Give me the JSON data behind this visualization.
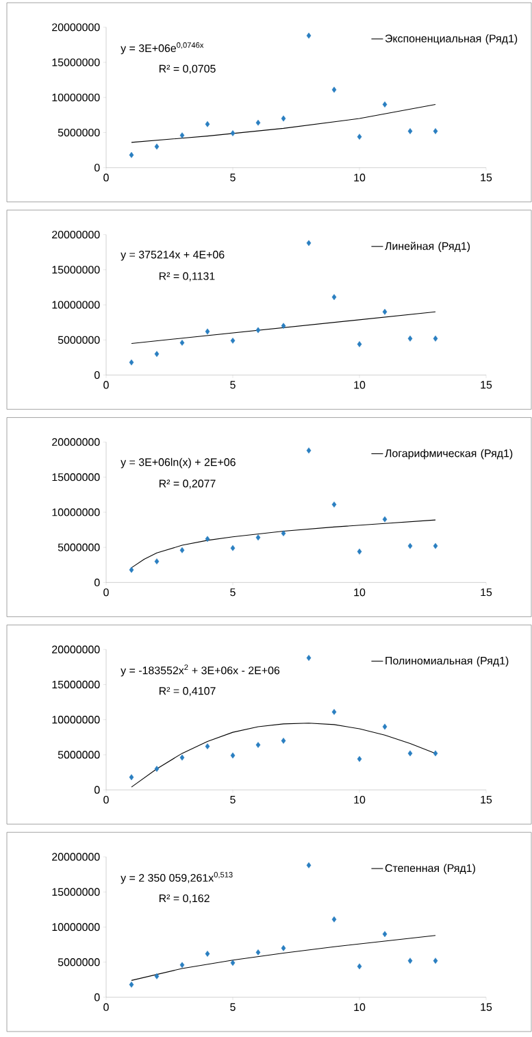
{
  "chart_data": [
    {
      "type": "scatter",
      "x": [
        1,
        2,
        3,
        4,
        5,
        6,
        7,
        8,
        9,
        10,
        11,
        12,
        13
      ],
      "xlim": [
        0,
        15
      ],
      "xticks": [
        0,
        5,
        10,
        15
      ],
      "ylim": [
        0,
        20000000
      ],
      "yticks": [
        0,
        5000000,
        10000000,
        15000000,
        20000000
      ],
      "legend": "top right",
      "grid": false,
      "annotations": [
        "y = 3E+06e$^{0,0746x}$",
        "R² = 0,0705"
      ],
      "series": [
        {
          "color": "#2a7fc1",
          "marker": "diamond",
          "values": [
            1800000,
            3000000,
            4600000,
            6200000,
            4900000,
            6400000,
            7000000,
            18800000,
            11100000,
            4400000,
            9000000,
            5200000,
            5200000
          ]
        },
        {
          "type": "line",
          "name": "Экспоненциальная (Ряд1)",
          "color": "#000000",
          "marker": "none",
          "line_style": "solid",
          "x": [
            1,
            4,
            7,
            10,
            13
          ],
          "values": [
            3600000,
            4500000,
            5600000,
            7000000,
            9000000
          ]
        }
      ]
    },
    {
      "type": "scatter",
      "x": [
        1,
        2,
        3,
        4,
        5,
        6,
        7,
        8,
        9,
        10,
        11,
        12,
        13
      ],
      "xlim": [
        0,
        15
      ],
      "xticks": [
        0,
        5,
        10,
        15
      ],
      "ylim": [
        0,
        20000000
      ],
      "yticks": [
        0,
        5000000,
        10000000,
        15000000,
        20000000
      ],
      "legend": "top right",
      "grid": false,
      "annotations": [
        "y = 375214x + 4E+06",
        "R² = 0,1131"
      ],
      "series": [
        {
          "color": "#2a7fc1",
          "marker": "diamond",
          "values": [
            1800000,
            3000000,
            4600000,
            6200000,
            4900000,
            6400000,
            7000000,
            18800000,
            11100000,
            4400000,
            9000000,
            5200000,
            5200000
          ]
        },
        {
          "type": "line",
          "name": "Линейная (Ряд1)",
          "color": "#000000",
          "marker": "none",
          "line_style": "solid",
          "x": [
            1,
            13
          ],
          "values": [
            4500000,
            9000000
          ]
        }
      ]
    },
    {
      "type": "scatter",
      "x": [
        1,
        2,
        3,
        4,
        5,
        6,
        7,
        8,
        9,
        10,
        11,
        12,
        13
      ],
      "xlim": [
        0,
        15
      ],
      "xticks": [
        0,
        5,
        10,
        15
      ],
      "ylim": [
        0,
        20000000
      ],
      "yticks": [
        0,
        5000000,
        10000000,
        15000000,
        20000000
      ],
      "legend": "top right",
      "grid": false,
      "annotations": [
        "y = 3E+06ln(x) + 2E+06",
        "R² = 0,2077"
      ],
      "series": [
        {
          "color": "#2a7fc1",
          "marker": "diamond",
          "values": [
            1800000,
            3000000,
            4600000,
            6200000,
            4900000,
            6400000,
            7000000,
            18800000,
            11100000,
            4400000,
            9000000,
            5200000,
            5200000
          ]
        },
        {
          "type": "line",
          "name": "Логарифмическая (Ряд1)",
          "color": "#000000",
          "marker": "none",
          "line_style": "solid",
          "x": [
            1,
            1.5,
            2,
            3,
            4,
            5,
            7,
            9,
            11,
            13
          ],
          "values": [
            2100000,
            3300000,
            4200000,
            5300000,
            6000000,
            6500000,
            7300000,
            7900000,
            8400000,
            8900000
          ]
        }
      ]
    },
    {
      "type": "scatter",
      "x": [
        1,
        2,
        3,
        4,
        5,
        6,
        7,
        8,
        9,
        10,
        11,
        12,
        13
      ],
      "xlim": [
        0,
        15
      ],
      "xticks": [
        0,
        5,
        10,
        15
      ],
      "ylim": [
        0,
        20000000
      ],
      "yticks": [
        0,
        5000000,
        10000000,
        15000000,
        20000000
      ],
      "legend": "top right",
      "grid": false,
      "annotations": [
        "y = -183552x$^{2}$ + 3E+06x - 2E+06",
        "R² = 0,4107"
      ],
      "series": [
        {
          "color": "#2a7fc1",
          "marker": "diamond",
          "values": [
            1800000,
            3000000,
            4600000,
            6200000,
            4900000,
            6400000,
            7000000,
            18800000,
            11100000,
            4400000,
            9000000,
            5200000,
            5200000
          ]
        },
        {
          "type": "line",
          "name": "Полиномиальная (Ряд1)",
          "color": "#000000",
          "marker": "none",
          "line_style": "solid",
          "x": [
            1,
            2,
            3,
            4,
            5,
            6,
            7,
            8,
            9,
            10,
            11,
            12,
            13
          ],
          "values": [
            400000,
            3000000,
            5200000,
            6900000,
            8200000,
            9000000,
            9400000,
            9500000,
            9300000,
            8700000,
            7800000,
            6600000,
            5200000
          ]
        }
      ]
    },
    {
      "type": "scatter",
      "x": [
        1,
        2,
        3,
        4,
        5,
        6,
        7,
        8,
        9,
        10,
        11,
        12,
        13
      ],
      "xlim": [
        0,
        15
      ],
      "xticks": [
        0,
        5,
        10,
        15
      ],
      "ylim": [
        0,
        20000000
      ],
      "yticks": [
        0,
        5000000,
        10000000,
        15000000,
        20000000
      ],
      "legend": "top right",
      "grid": false,
      "annotations": [
        "y = 2 350 059,261x$^{0,513}$",
        "R² = 0,162"
      ],
      "series": [
        {
          "color": "#2a7fc1",
          "marker": "diamond",
          "values": [
            1800000,
            3000000,
            4600000,
            6200000,
            4900000,
            6400000,
            7000000,
            18800000,
            11100000,
            4400000,
            9000000,
            5200000,
            5200000
          ]
        },
        {
          "type": "line",
          "name": "Степенная (Ряд1)",
          "color": "#000000",
          "marker": "none",
          "line_style": "solid",
          "x": [
            1,
            3,
            5,
            7,
            9,
            11,
            13
          ],
          "values": [
            2400000,
            4100000,
            5300000,
            6300000,
            7200000,
            8000000,
            8800000
          ]
        }
      ]
    }
  ]
}
